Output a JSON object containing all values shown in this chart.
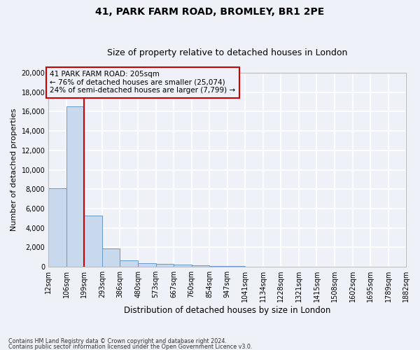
{
  "title1": "41, PARK FARM ROAD, BROMLEY, BR1 2PE",
  "title2": "Size of property relative to detached houses in London",
  "xlabel": "Distribution of detached houses by size in London",
  "ylabel": "Number of detached properties",
  "bar_values": [
    8100,
    16500,
    5300,
    1850,
    650,
    350,
    280,
    200,
    150,
    80,
    50,
    30,
    20,
    15,
    10,
    8,
    5,
    4,
    3,
    2
  ],
  "bar_color": "#c8d9ee",
  "bar_edge_color": "#6699cc",
  "bin_edges": [
    12,
    106,
    199,
    293,
    386,
    480,
    573,
    667,
    760,
    854,
    947,
    1041,
    1134,
    1228,
    1321,
    1415,
    1508,
    1602,
    1695,
    1789,
    1882
  ],
  "tick_labels": [
    "12sqm",
    "106sqm",
    "199sqm",
    "293sqm",
    "386sqm",
    "480sqm",
    "573sqm",
    "667sqm",
    "760sqm",
    "854sqm",
    "947sqm",
    "1041sqm",
    "1134sqm",
    "1228sqm",
    "1321sqm",
    "1415sqm",
    "1508sqm",
    "1602sqm",
    "1695sqm",
    "1789sqm",
    "1882sqm"
  ],
  "property_line_x": 199,
  "red_line_color": "#cc0000",
  "annotation_text": "41 PARK FARM ROAD: 205sqm\n← 76% of detached houses are smaller (25,074)\n24% of semi-detached houses are larger (7,799) →",
  "annotation_box_color": "#cc0000",
  "ylim": [
    0,
    20000
  ],
  "yticks": [
    0,
    2000,
    4000,
    6000,
    8000,
    10000,
    12000,
    14000,
    16000,
    18000,
    20000
  ],
  "footer1": "Contains HM Land Registry data © Crown copyright and database right 2024.",
  "footer2": "Contains public sector information licensed under the Open Government Licence v3.0.",
  "background_color": "#eef1f8",
  "grid_color": "#ffffff",
  "title1_fontsize": 10,
  "title2_fontsize": 9
}
